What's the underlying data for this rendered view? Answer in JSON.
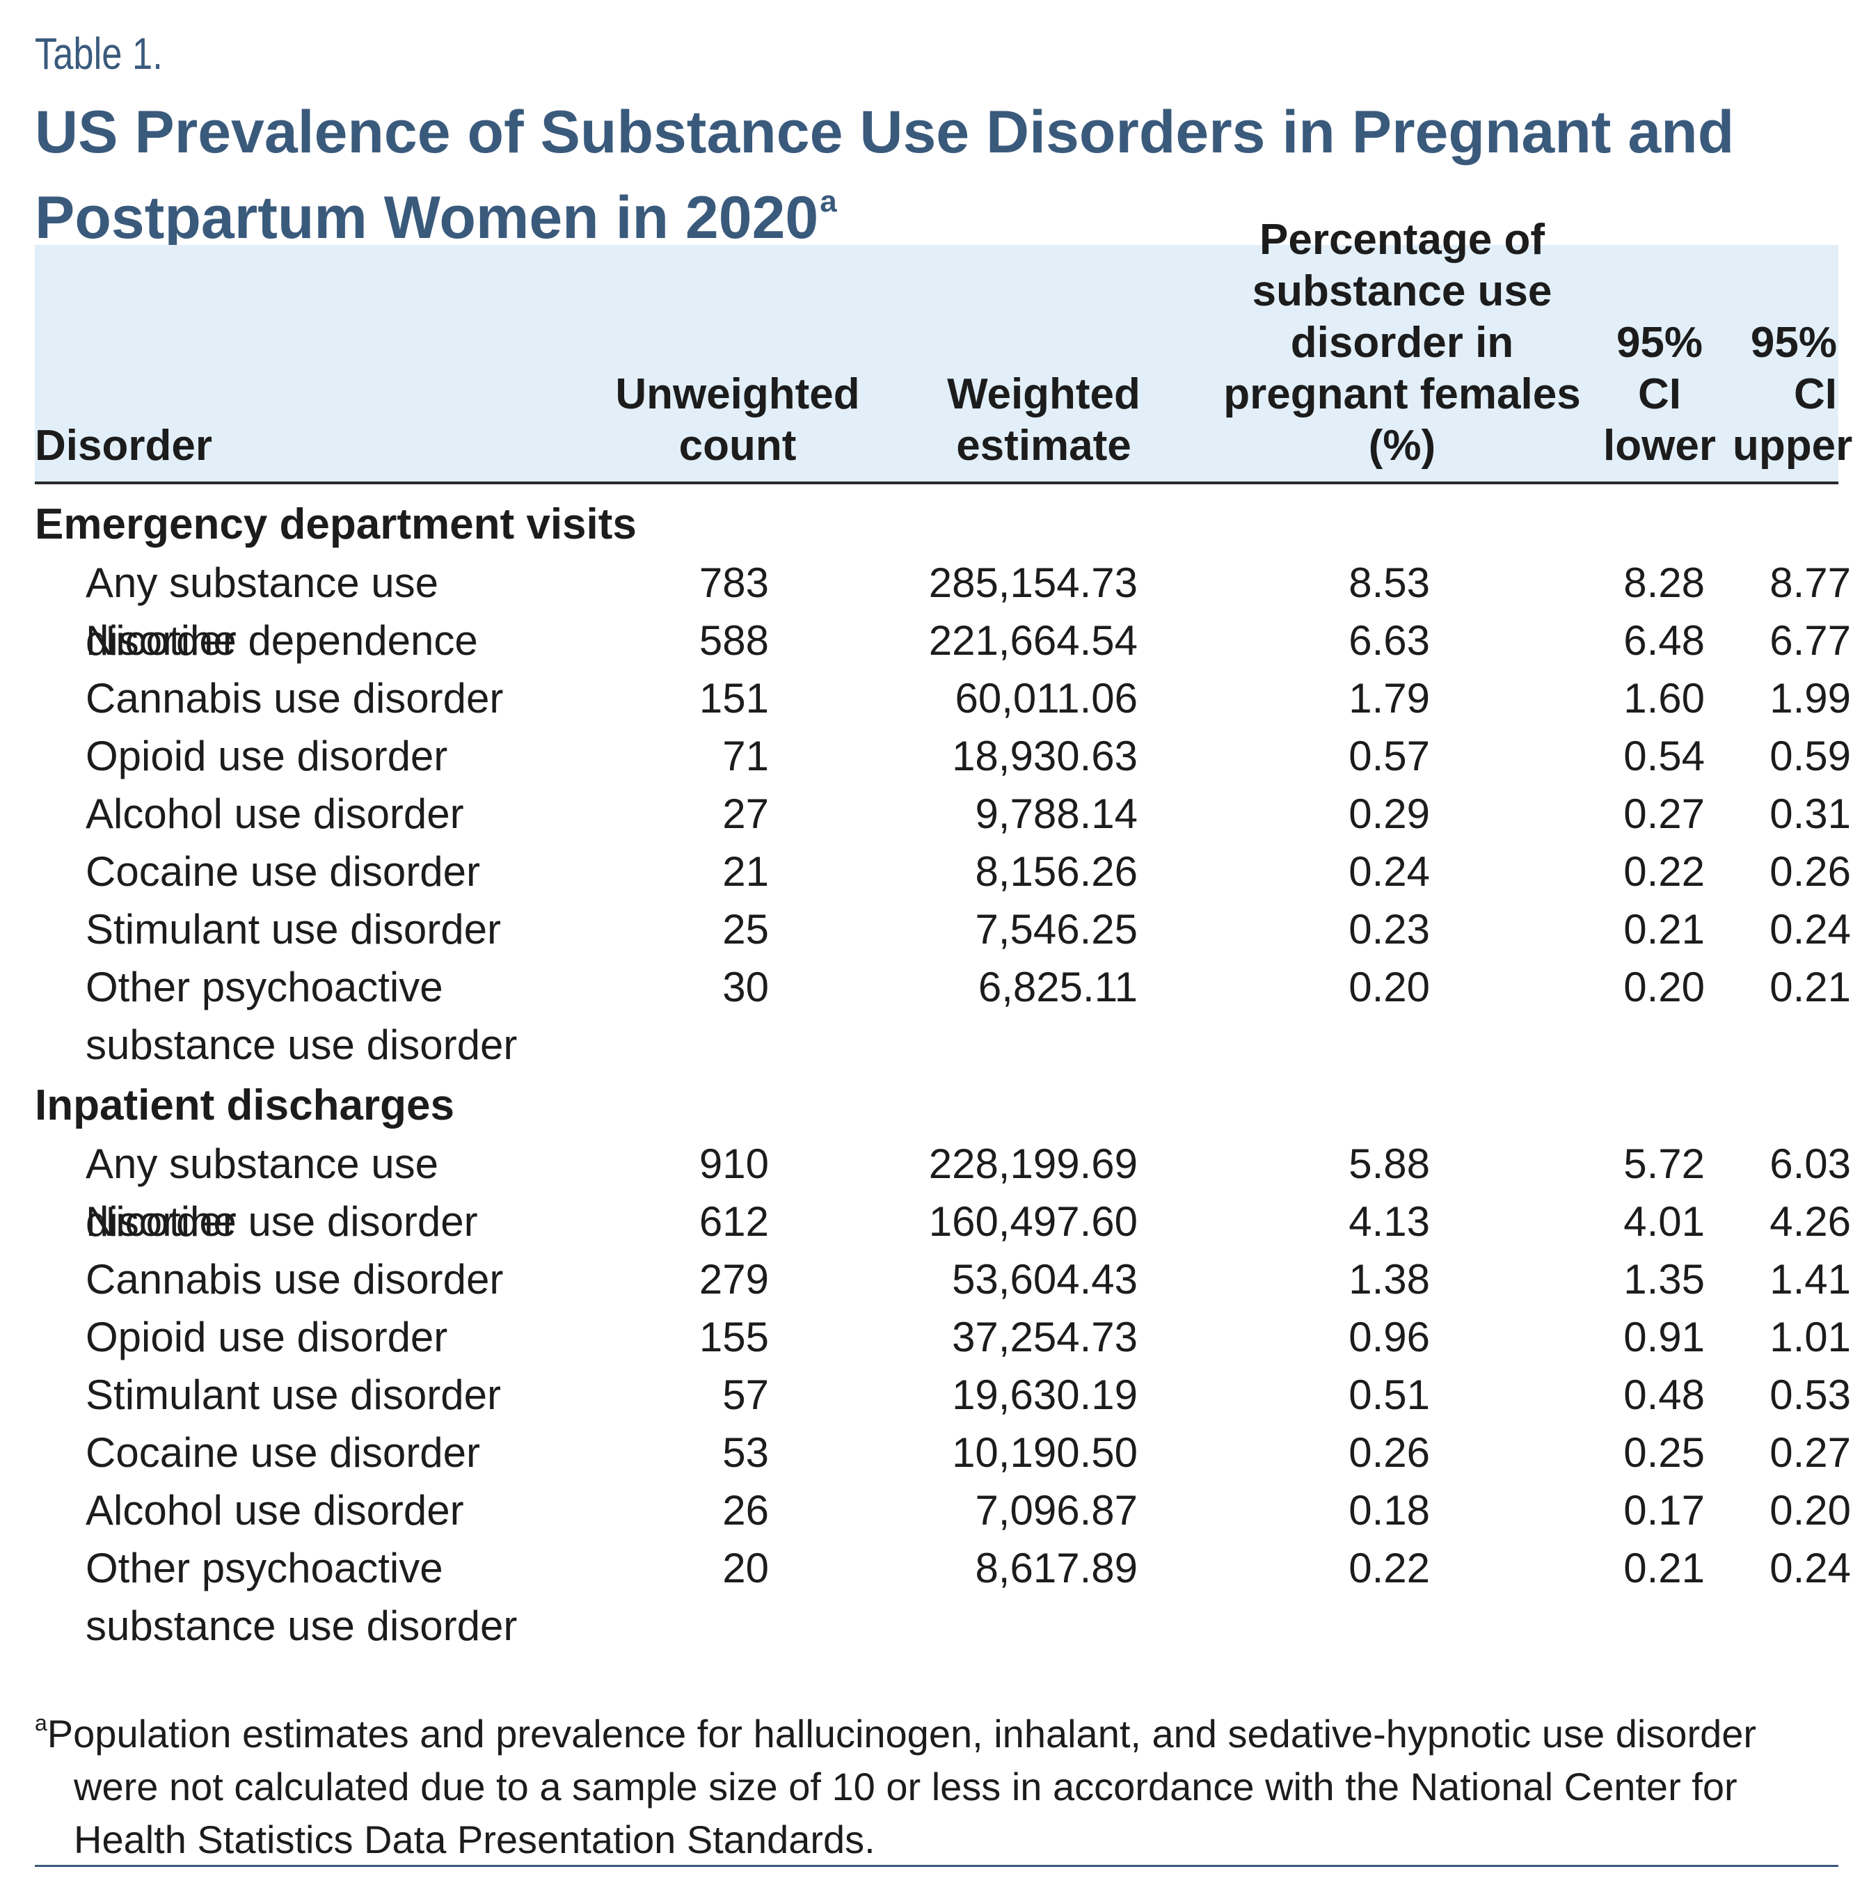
{
  "table_label": "Table 1.",
  "title": "US Prevalence of Substance Use Disorders in Pregnant and Postpartum Women in 2020",
  "title_footnote_mark": "a",
  "columns": {
    "disorder": "Disorder",
    "unweighted": "Unweighted\ncount",
    "weighted": "Weighted\nestimate",
    "percentage": "Percentage of\nsubstance use\ndisorder in\npregnant females (%)",
    "ci_lower": "95%\nCI\nlower",
    "ci_upper": "95%\nCI\nupper"
  },
  "sections": [
    {
      "name": "Emergency department visits",
      "rows": [
        {
          "disorder": "Any substance use disorder",
          "unweighted": "783",
          "weighted": "285,154.73",
          "pct": "8.53",
          "lower": "8.28",
          "upper": "8.77"
        },
        {
          "disorder": "Nicotine dependence",
          "unweighted": "588",
          "weighted": "221,664.54",
          "pct": "6.63",
          "lower": "6.48",
          "upper": "6.77"
        },
        {
          "disorder": "Cannabis use disorder",
          "unweighted": "151",
          "weighted": "60,011.06",
          "pct": "1.79",
          "lower": "1.60",
          "upper": "1.99"
        },
        {
          "disorder": "Opioid use disorder",
          "unweighted": "71",
          "weighted": "18,930.63",
          "pct": "0.57",
          "lower": "0.54",
          "upper": "0.59"
        },
        {
          "disorder": "Alcohol use disorder",
          "unweighted": "27",
          "weighted": "9,788.14",
          "pct": "0.29",
          "lower": "0.27",
          "upper": "0.31"
        },
        {
          "disorder": "Cocaine use disorder",
          "unweighted": "21",
          "weighted": "8,156.26",
          "pct": "0.24",
          "lower": "0.22",
          "upper": "0.26"
        },
        {
          "disorder": "Stimulant use disorder",
          "unweighted": "25",
          "weighted": "7,546.25",
          "pct": "0.23",
          "lower": "0.21",
          "upper": "0.24"
        },
        {
          "disorder": "Other psychoactive substance use disorder",
          "unweighted": "30",
          "weighted": "6,825.11",
          "pct": "0.20",
          "lower": "0.20",
          "upper": "0.21"
        }
      ]
    },
    {
      "name": "Inpatient discharges",
      "rows": [
        {
          "disorder": "Any substance use disorder",
          "unweighted": "910",
          "weighted": "228,199.69",
          "pct": "5.88",
          "lower": "5.72",
          "upper": "6.03"
        },
        {
          "disorder": "Nicotine use disorder",
          "unweighted": "612",
          "weighted": "160,497.60",
          "pct": "4.13",
          "lower": "4.01",
          "upper": "4.26"
        },
        {
          "disorder": "Cannabis use disorder",
          "unweighted": "279",
          "weighted": "53,604.43",
          "pct": "1.38",
          "lower": "1.35",
          "upper": "1.41"
        },
        {
          "disorder": "Opioid use disorder",
          "unweighted": "155",
          "weighted": "37,254.73",
          "pct": "0.96",
          "lower": "0.91",
          "upper": "1.01"
        },
        {
          "disorder": "Stimulant use disorder",
          "unweighted": "57",
          "weighted": "19,630.19",
          "pct": "0.51",
          "lower": "0.48",
          "upper": "0.53"
        },
        {
          "disorder": "Cocaine use disorder",
          "unweighted": "53",
          "weighted": "10,190.50",
          "pct": "0.26",
          "lower": "0.25",
          "upper": "0.27"
        },
        {
          "disorder": "Alcohol use disorder",
          "unweighted": "26",
          "weighted": "7,096.87",
          "pct": "0.18",
          "lower": "0.17",
          "upper": "0.20"
        },
        {
          "disorder": "Other psychoactive substance use disorder",
          "unweighted": "20",
          "weighted": "8,617.89",
          "pct": "0.22",
          "lower": "0.21",
          "upper": "0.24"
        }
      ]
    }
  ],
  "footnote": {
    "mark": "a",
    "text": "Population estimates and prevalence for hallucinogen, inhalant, and sedative-hypnotic use disorder were not calculated due to a sample size of 10 or less in accordance with the National Center for Health Statistics Data Presentation Standards."
  },
  "colors": {
    "accent": "#3a5a7c",
    "header_bg": "#e2eff8"
  }
}
